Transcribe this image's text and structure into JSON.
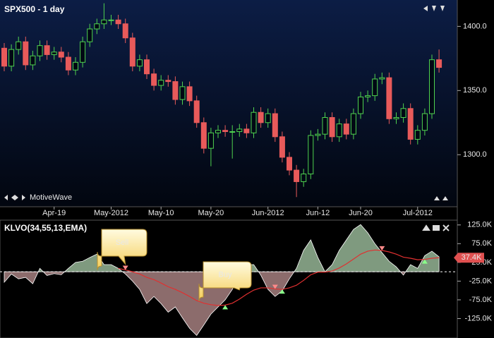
{
  "chart_data": [
    {
      "type": "candlestick",
      "title": "SPX500 - 1 day",
      "watermark": "MotiveWave",
      "categories": [
        null,
        null,
        null,
        null,
        null,
        null,
        null,
        "Apr-19",
        null,
        null,
        null,
        null,
        null,
        null,
        null,
        "May-2012",
        null,
        null,
        null,
        null,
        null,
        null,
        "May-10",
        null,
        null,
        null,
        null,
        null,
        null,
        "May-20",
        null,
        null,
        null,
        null,
        null,
        null,
        null,
        "Jun-2012",
        null,
        null,
        null,
        null,
        null,
        null,
        "Jun-12",
        null,
        null,
        null,
        null,
        null,
        "Jun-20",
        null,
        null,
        null,
        null,
        null,
        null,
        null,
        "Jul-2012",
        null,
        null,
        null
      ],
      "open": [
        1383,
        1369,
        1382,
        1388,
        1370,
        1377,
        1385,
        1378,
        1380,
        1376,
        1366,
        1372,
        1388,
        1398,
        1402,
        1405,
        1405,
        1402,
        1391,
        1369,
        1374,
        1363,
        1354,
        1358,
        1357,
        1343,
        1353,
        1342,
        1325,
        1305,
        1317,
        1319,
        1318,
        1318,
        1320,
        1317,
        1333,
        1325,
        1332,
        1314,
        1298,
        1288,
        1279,
        1285,
        1315,
        1316,
        1329,
        1314,
        1324,
        1316,
        1332,
        1345,
        1346,
        1359,
        1360,
        1328,
        1329,
        1336,
        1312,
        1319,
        1332,
        1374
      ],
      "high": [
        1387,
        1386,
        1392,
        1392,
        1381,
        1389,
        1389,
        1384,
        1384,
        1380,
        1376,
        1392,
        1402,
        1406,
        1418,
        1409,
        1409,
        1406,
        1395,
        1378,
        1378,
        1367,
        1362,
        1362,
        1361,
        1357,
        1357,
        1346,
        1329,
        1321,
        1323,
        1323,
        1323,
        1324,
        1324,
        1337,
        1337,
        1336,
        1336,
        1318,
        1302,
        1292,
        1289,
        1319,
        1320,
        1333,
        1333,
        1328,
        1328,
        1336,
        1349,
        1350,
        1363,
        1364,
        1364,
        1333,
        1340,
        1340,
        1323,
        1336,
        1378,
        1382
      ],
      "low": [
        1365,
        1365,
        1378,
        1366,
        1366,
        1373,
        1374,
        1374,
        1372,
        1362,
        1362,
        1368,
        1384,
        1394,
        1398,
        1401,
        1398,
        1387,
        1365,
        1365,
        1359,
        1350,
        1350,
        1353,
        1339,
        1339,
        1338,
        1321,
        1301,
        1291,
        1313,
        1314,
        1297,
        1314,
        1313,
        1313,
        1321,
        1321,
        1310,
        1294,
        1284,
        1267,
        1275,
        1281,
        1311,
        1312,
        1310,
        1310,
        1312,
        1312,
        1328,
        1341,
        1342,
        1355,
        1324,
        1324,
        1325,
        1308,
        1308,
        1315,
        1328,
        1364
      ],
      "close": [
        1369,
        1382,
        1388,
        1370,
        1377,
        1385,
        1378,
        1380,
        1376,
        1366,
        1372,
        1388,
        1398,
        1402,
        1405,
        1405,
        1402,
        1391,
        1369,
        1374,
        1363,
        1354,
        1358,
        1357,
        1343,
        1353,
        1342,
        1325,
        1305,
        1317,
        1319,
        1318,
        1318,
        1320,
        1317,
        1333,
        1325,
        1332,
        1314,
        1298,
        1288,
        1279,
        1285,
        1315,
        1316,
        1329,
        1314,
        1324,
        1316,
        1332,
        1345,
        1346,
        1359,
        1360,
        1328,
        1329,
        1336,
        1312,
        1319,
        1332,
        1374,
        1368
      ],
      "up_color": "#4fd24f",
      "down_color": "#e85a5a",
      "ylim": [
        1260,
        1420
      ],
      "yticks": [
        {
          "value": 1300,
          "label": "1300.0"
        },
        {
          "value": 1350,
          "label": "1350.0"
        },
        {
          "value": 1400,
          "label": "1400.0"
        }
      ]
    },
    {
      "type": "oscillator",
      "title": "KLVO(34,55,13,EMA)",
      "series": [
        {
          "name": "KLVO",
          "color": "#ffffff",
          "up_fill": "#7f9a7f",
          "down_fill": "#8c6c6c",
          "values": [
            -28000,
            -6000,
            -19000,
            -15000,
            -32000,
            9000,
            -10000,
            -5000,
            -8000,
            9000,
            25000,
            28000,
            38000,
            47000,
            19000,
            19000,
            9000,
            -6000,
            -25000,
            -47000,
            -85000,
            -66000,
            -85000,
            -108000,
            -94000,
            -123000,
            -151000,
            -170000,
            -142000,
            -113000,
            -94000,
            -75000,
            -47000,
            -6000,
            19000,
            19000,
            -9000,
            -47000,
            -66000,
            -51000,
            -19000,
            9000,
            57000,
            85000,
            38000,
            0,
            19000,
            57000,
            85000,
            113000,
            126000,
            104000,
            75000,
            51000,
            28000,
            13000,
            -9000,
            19000,
            9000,
            43000,
            55000,
            40000
          ]
        },
        {
          "name": "Signal",
          "color": "#e03030",
          "values": [
            null,
            null,
            null,
            null,
            null,
            null,
            null,
            null,
            null,
            null,
            null,
            null,
            null,
            null,
            null,
            null,
            9000,
            5000,
            0,
            -6000,
            -15000,
            -21000,
            -30000,
            -40000,
            -47000,
            -56000,
            -66000,
            -77000,
            -84000,
            -88000,
            -90000,
            -89000,
            -84000,
            -73000,
            -60000,
            -49000,
            -43000,
            -43000,
            -46000,
            -47000,
            -43000,
            -36000,
            -23000,
            -8000,
            -1000,
            -1000,
            2000,
            10000,
            21000,
            34000,
            47000,
            55000,
            58000,
            57000,
            53000,
            47000,
            39000,
            36000,
            32000,
            33000,
            36000,
            37400
          ],
          "value_labels": [
            null,
            null,
            null,
            null,
            null,
            null,
            null,
            null,
            null,
            null,
            null,
            null,
            null,
            null,
            null,
            null,
            null,
            null,
            null,
            null,
            null,
            null,
            null,
            null,
            null,
            null,
            null,
            null,
            null,
            null,
            null,
            null,
            null,
            null,
            null,
            null,
            null,
            null,
            null,
            null,
            null,
            null,
            null,
            null,
            null,
            null,
            null,
            null,
            null,
            null,
            null,
            null,
            null,
            null,
            null,
            null,
            null,
            null,
            null,
            null,
            null,
            "37.4K"
          ]
        }
      ],
      "sell_signals": [
        17,
        38,
        53
      ],
      "buy_signals": [
        31,
        39,
        59
      ],
      "annotations": [
        "Sell",
        "Buy"
      ],
      "ylim": [
        -175000,
        134000
      ],
      "yticks": [
        {
          "value": -125000,
          "label": "-125.0K"
        },
        {
          "value": -75000,
          "label": "-75.0K"
        },
        {
          "value": -25000,
          "label": "-25.0K"
        },
        {
          "value": 25000,
          "label": "25.0K"
        },
        {
          "value": 75000,
          "label": "75.0K"
        },
        {
          "value": 125000,
          "label": "125.0K"
        }
      ]
    }
  ]
}
